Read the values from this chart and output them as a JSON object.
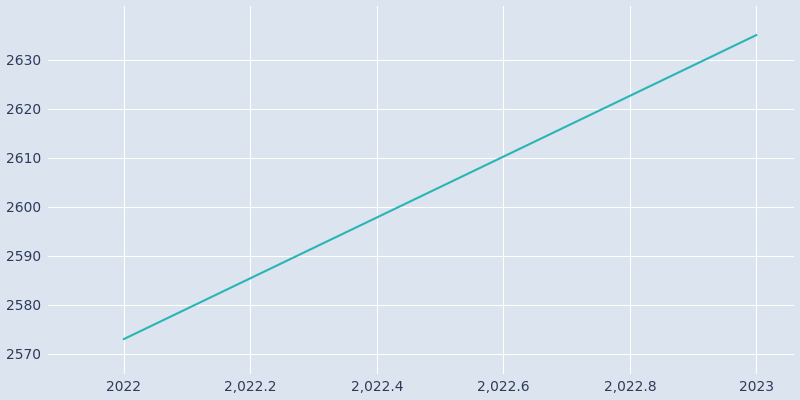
{
  "x": [
    2022,
    2023
  ],
  "y": [
    2573,
    2635
  ],
  "line_color": "#2ab5b5",
  "plot_bg_color": "#dce4ef",
  "outer_bg_color": "#dce4ef",
  "tick_color": "#2d3a5a",
  "grid_color": "#ffffff",
  "ylim": [
    2566,
    2641
  ],
  "xlim": [
    2021.88,
    2023.06
  ],
  "x_ticks": [
    2022,
    2022.2,
    2022.4,
    2022.6,
    2022.8,
    2023
  ],
  "y_ticks": [
    2570,
    2580,
    2590,
    2600,
    2610,
    2620,
    2630
  ],
  "linewidth": 1.5
}
